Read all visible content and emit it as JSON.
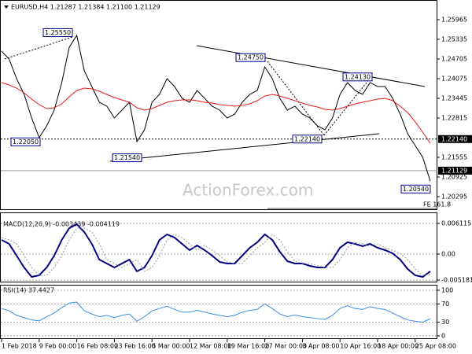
{
  "chart_data": [
    {
      "type": "line",
      "title": "EURUSD,H4 1.21287 1.21384 1.21100 1.21129",
      "ylim": [
        1.19892,
        1.26544
      ],
      "yticks": [
        1.25965,
        1.25335,
        1.24705,
        1.24075,
        1.23445,
        1.22815,
        1.21555,
        1.20925,
        1.20295
      ],
      "series": [
        {
          "color": "#000000",
          "values": [
            1.24957,
            1.24705,
            1.24075,
            1.23571,
            1.22815,
            1.22185,
            1.22563,
            1.23067,
            1.23949,
            1.25083,
            1.25461,
            1.24327,
            1.23823,
            1.23319,
            1.23193,
            1.22815,
            1.23067,
            1.23319,
            1.22059,
            1.22437,
            1.23319,
            1.23571,
            1.24075,
            1.23823,
            1.23445,
            1.23319,
            1.23697,
            1.23445,
            1.23193,
            1.23067,
            1.22815,
            1.22941,
            1.23319,
            1.23571,
            1.23697,
            1.24453,
            1.24075,
            1.23445,
            1.23067,
            1.23193,
            1.22941,
            1.22815,
            1.22563,
            1.22437,
            1.22815,
            1.23571,
            1.23949,
            1.23697,
            1.23571,
            1.23949,
            1.23823,
            1.23823,
            1.23445,
            1.22941,
            1.22311,
            1.21933,
            1.21555,
            1.20799
          ]
        },
        {
          "color": "#e8191b",
          "values": [
            1.23949,
            1.23873,
            1.23772,
            1.23621,
            1.23419,
            1.23243,
            1.23117,
            1.23142,
            1.23268,
            1.23495,
            1.23697,
            1.23772,
            1.23747,
            1.23671,
            1.23571,
            1.2347,
            1.23394,
            1.23319,
            1.23142,
            1.23067,
            1.23117,
            1.23218,
            1.23319,
            1.23369,
            1.23394,
            1.23394,
            1.23369,
            1.23319,
            1.23293,
            1.23243,
            1.23218,
            1.23193,
            1.23218,
            1.23268,
            1.23369,
            1.2352,
            1.23571,
            1.2352,
            1.23445,
            1.23369,
            1.23293,
            1.23218,
            1.23167,
            1.23092,
            1.23067,
            1.23117,
            1.23193,
            1.23268,
            1.23319,
            1.23369,
            1.23419,
            1.23445,
            1.23369,
            1.23193,
            1.22991,
            1.22689,
            1.22361,
            1.22008
          ]
        }
      ],
      "annotations": [
        {
          "value": 1.2555,
          "label": "1.25550"
        },
        {
          "value": 1.2475,
          "label": "1.24750"
        },
        {
          "value": 1.2413,
          "label": "1.24130"
        },
        {
          "value": 1.2205,
          "label": "1.22050"
        },
        {
          "value": 1.2154,
          "label": "1.21540"
        },
        {
          "value": 1.2214,
          "label": "1.22140"
        },
        {
          "value": 1.2054,
          "label": "1.20540"
        }
      ],
      "price_markers": [
        {
          "value": 1.2214,
          "label": "1.22140"
        },
        {
          "value": 1.21129,
          "label": "1.21129"
        }
      ],
      "fe_label": "FE 161.8",
      "watermark": "ActionForex.com"
    },
    {
      "type": "line",
      "title": "MACD(12,26,9) -0.003439 -0.004119",
      "ylim": [
        -0.005488,
        0.00831
      ],
      "yticks": [
        0.006115,
        {
          "value": 0,
          "label": "0.00"
        },
        -0.005181
      ],
      "series": [
        {
          "color": "#000080",
          "values": [
            0.002822,
            0.002038,
            -0.000314,
            -0.002666,
            -0.004547,
            -0.004234,
            -0.002666,
            -0.000314,
            0.002822,
            0.005174,
            0.005958,
            0.00439,
            0.002038,
            -0.001098,
            -0.001882,
            -0.002666,
            -0.001882,
            -0.001098,
            -0.00345,
            -0.002666,
            -0.000314,
            0.002822,
            0.00392,
            0.003293,
            0.002038,
            0.000784,
            0.001725,
            0.000784,
            -0.000314,
            -0.001568,
            -0.001882,
            -0.001882,
            -0.000314,
            0.001254,
            0.002352,
            0.00392,
            0.002822,
            0.00047,
            -0.001411,
            -0.001882,
            -0.001882,
            -0.002352,
            -0.002666,
            -0.002666,
            -0.001098,
            0.001254,
            0.002352,
            0.002038,
            0.001568,
            0.002038,
            0.001254,
            0.000784,
            0.000157,
            -0.001098,
            -0.002979,
            -0.004234,
            -0.004547,
            -0.003439
          ]
        },
        {
          "color": "#9a9a9a",
          "values": [
            0.003293,
            0.002822,
            0.002038,
            -0.000314,
            -0.002666,
            -0.004234,
            -0.004234,
            -0.002666,
            -0.000314,
            0.002822,
            0.005174,
            0.005174,
            0.00439,
            0.002038,
            -0.001098,
            -0.001882,
            -0.002666,
            -0.001882,
            -0.001098,
            -0.00345,
            -0.002666,
            -0.000314,
            0.002822,
            0.00392,
            0.003293,
            0.002038,
            0.000784,
            0.001725,
            0.000784,
            -0.000314,
            -0.001568,
            -0.001882,
            -0.001882,
            -0.000314,
            0.001254,
            0.002352,
            0.00392,
            0.002822,
            0.00047,
            -0.001411,
            -0.001882,
            -0.001882,
            -0.002352,
            -0.002666,
            -0.002666,
            -0.001098,
            0.001254,
            0.002352,
            0.002038,
            0.001568,
            0.002038,
            0.001254,
            0.000784,
            0.000157,
            -0.001098,
            -0.002979,
            -0.004234,
            -0.004119
          ]
        }
      ]
    },
    {
      "type": "line",
      "title": "RSI(14) 37.4427",
      "ylim": [
        -5.2,
        112
      ],
      "yticks": [
        100,
        70,
        30,
        0
      ],
      "categories": [
        "1 Feb 2018",
        null,
        null,
        null,
        null,
        "9 Feb 00:00",
        null,
        null,
        null,
        null,
        "16 Feb 08:00",
        null,
        null,
        null,
        null,
        "23 Feb 16:00",
        null,
        null,
        null,
        null,
        "5 Mar 00:00",
        null,
        null,
        null,
        null,
        "12 Mar 08:00",
        null,
        null,
        null,
        null,
        "19 Mar 16:00",
        null,
        null,
        null,
        null,
        "27 Mar 00:00",
        null,
        null,
        null,
        null,
        "3 Apr 08:00",
        null,
        null,
        null,
        null,
        "10 Apr 16:00",
        null,
        null,
        null,
        null,
        "18 Apr 00:00",
        null,
        null,
        null,
        null,
        "25 Apr 08:00",
        null,
        null
      ],
      "series": [
        {
          "color": "#3b8ee8",
          "values": [
            60,
            55,
            45,
            40,
            35,
            33,
            42,
            50,
            62,
            72,
            74,
            55,
            48,
            42,
            45,
            40,
            45,
            48,
            32,
            42,
            55,
            60,
            65,
            58,
            52,
            52,
            56,
            52,
            48,
            45,
            42,
            45,
            52,
            56,
            58,
            70,
            60,
            48,
            42,
            46,
            42,
            40,
            38,
            36,
            45,
            60,
            66,
            60,
            58,
            64,
            60,
            58,
            50,
            42,
            35,
            32,
            30,
            37.4427
          ]
        }
      ]
    }
  ]
}
